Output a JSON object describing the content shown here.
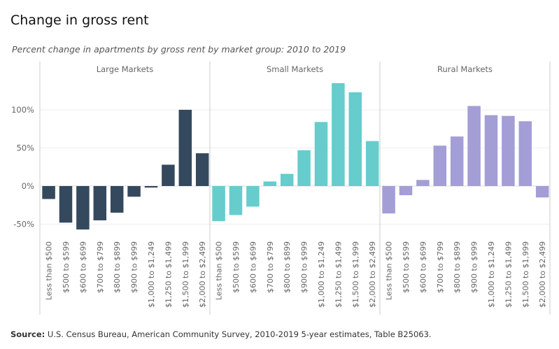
{
  "header": {
    "title": "Change in gross rent",
    "subtitle": "Percent change in apartments by gross rent by market group: 2010 to 2019"
  },
  "footer": {
    "source_label": "Source:",
    "source_text": " U.S. Census Bureau, American Community Survey, 2010-2019 5-year estimates, Table B25063."
  },
  "chart_data": {
    "type": "bar",
    "y_axis": {
      "min": -75,
      "max": 130,
      "ticks": [
        100,
        50,
        0,
        -50
      ],
      "tick_labels": [
        "100%",
        "50%",
        "0%",
        "-50%"
      ]
    },
    "grid": true,
    "categories": [
      "Less than $500",
      "$500 to $599",
      "$600 to $699",
      "$700 to $799",
      "$800 to $899",
      "$900 to $999",
      "$1,000 to $1,249",
      "$1,250 to $1,499",
      "$1,500 to $1,999",
      "$2,000 to $2,499"
    ],
    "panels": [
      {
        "name": "Large Markets",
        "color": "#34495e",
        "values": [
          -17,
          -48,
          -57,
          -45,
          -35,
          -14,
          -2,
          28,
          100,
          43
        ]
      },
      {
        "name": "Small Markets",
        "color": "#66cccc",
        "values": [
          -46,
          -38,
          -27,
          6,
          16,
          47,
          84,
          135,
          123,
          59
        ]
      },
      {
        "name": "Rural Markets",
        "color": "#a39ed6",
        "values": [
          -36,
          -12,
          8,
          53,
          65,
          105,
          93,
          92,
          85,
          -15
        ]
      }
    ]
  }
}
